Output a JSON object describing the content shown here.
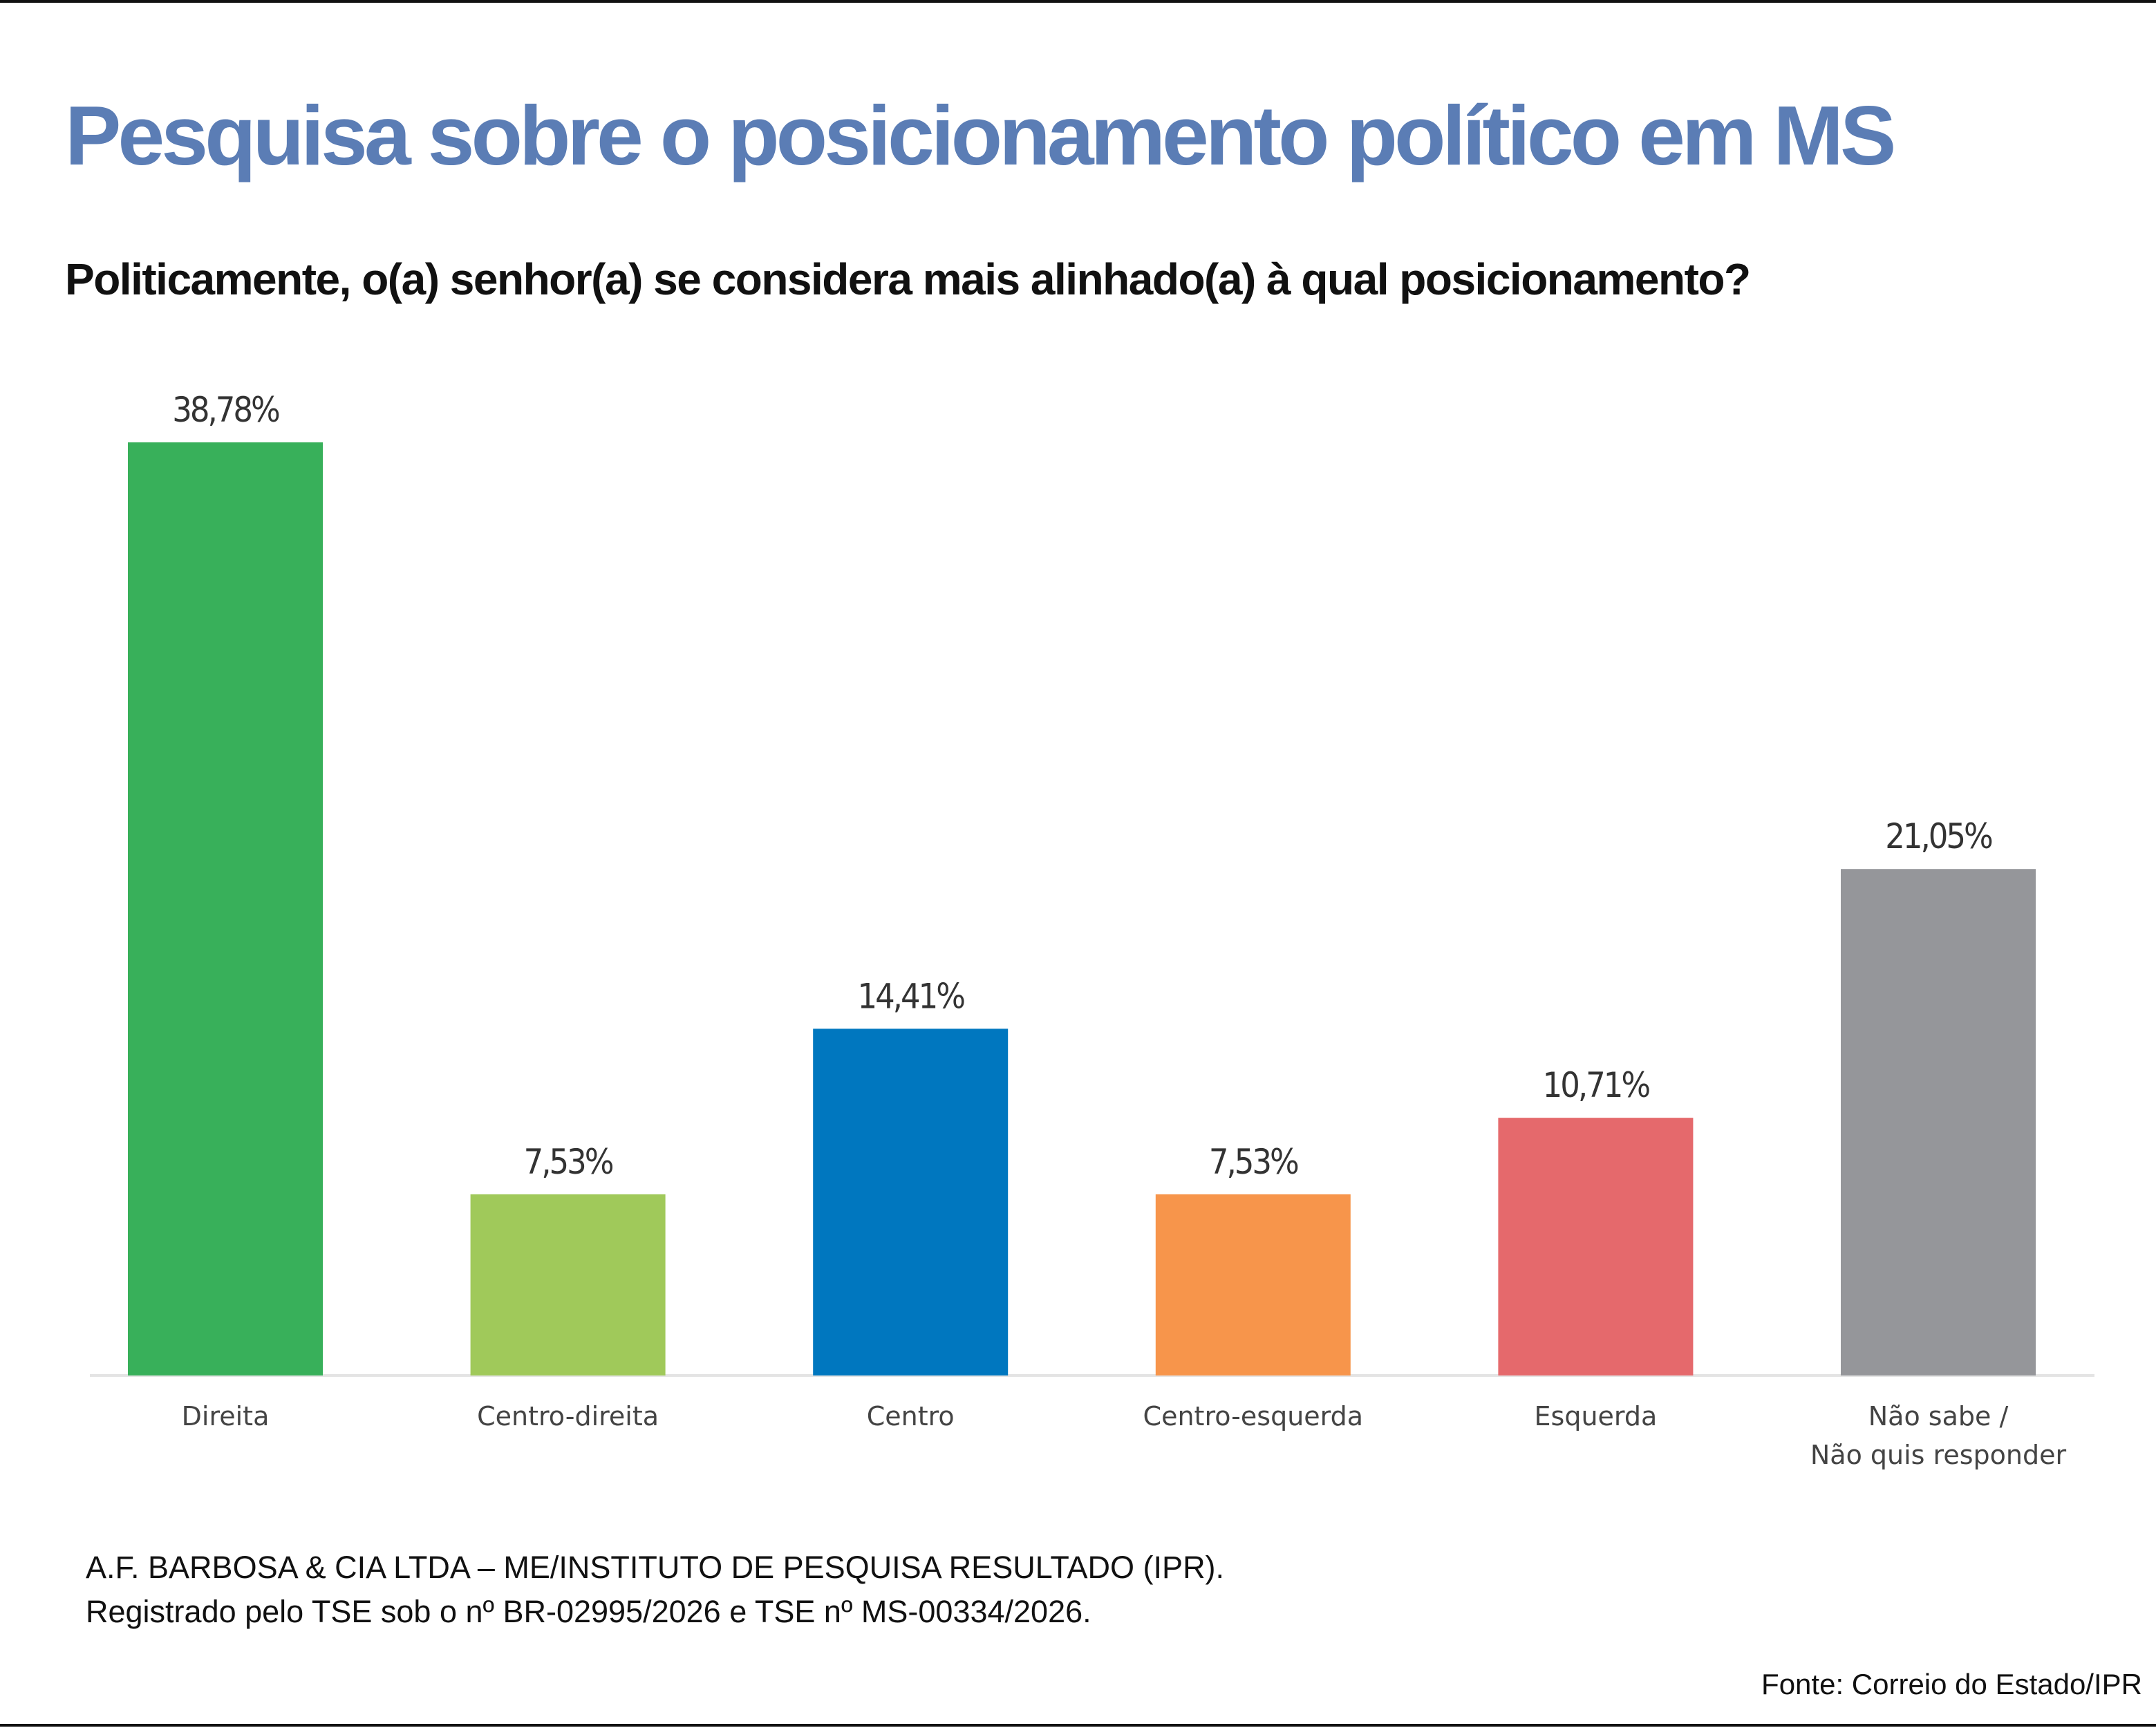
{
  "title": "Pesquisa sobre o posicionamento político em MS",
  "subtitle": "Politicamente, o(a) senhor(a) se considera mais alinhado(a) à qual posicionamento?",
  "chart_data": {
    "type": "bar",
    "categories": [
      "Direita",
      "Centro-direita",
      "Centro",
      "Centro-esquerda",
      "Esquerda",
      "Não sabe / Não quis responder"
    ],
    "category_lines": [
      [
        "Direita"
      ],
      [
        "Centro-direita"
      ],
      [
        "Centro"
      ],
      [
        "Centro-esquerda"
      ],
      [
        "Esquerda"
      ],
      [
        "Não sabe /",
        "Não quis responder"
      ]
    ],
    "values": [
      38.78,
      7.53,
      14.41,
      7.53,
      10.71,
      21.05
    ],
    "value_labels": [
      "38,78%",
      "7,53%",
      "14,41%",
      "7,53%",
      "10,71%",
      "21,05%"
    ],
    "colors": [
      "#38b05a",
      "#a0c95a",
      "#0077bf",
      "#f7954b",
      "#e5696c",
      "#95969a"
    ],
    "title": "Politicamente, o(a) senhor(a) se considera mais alinhado(a) à qual posicionamento?",
    "xlabel": "",
    "ylabel": "",
    "ylim": [
      0,
      38.78
    ],
    "grid": false,
    "legend": "none"
  },
  "notes": {
    "line1": "A.F. BARBOSA & CIA LTDA – ME/INSTITUTO DE PESQUISA RESULTADO (IPR).",
    "line2": "Registrado pelo TSE sob o nº BR-02995/2026 e TSE nº MS-00334/2026."
  },
  "source": "Fonte: Correio do Estado/IPR"
}
